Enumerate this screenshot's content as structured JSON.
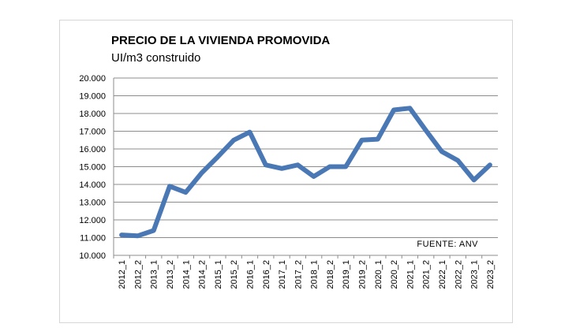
{
  "chart_data": {
    "type": "line",
    "title": "PRECIO DE LA VIVIENDA PROMOVIDA",
    "subtitle": "UI/m3 construido",
    "source": "FUENTE: ANV",
    "ylim": [
      10000,
      20000
    ],
    "yticks": [
      "10.000",
      "11.000",
      "12.000",
      "13.000",
      "14.000",
      "15.000",
      "16.000",
      "17.000",
      "18.000",
      "19.000",
      "20.000"
    ],
    "ytick_values": [
      10000,
      11000,
      12000,
      13000,
      14000,
      15000,
      16000,
      17000,
      18000,
      19000,
      20000
    ],
    "grid": true,
    "categories": [
      "2012_1",
      "2012_2",
      "2013_1",
      "2013_2",
      "2014_1",
      "2014_2",
      "2015_1",
      "2015_2",
      "2016_1",
      "2016_2",
      "2017_1",
      "2017_2",
      "2018_1",
      "2018_2",
      "2019_1",
      "2019_2",
      "2020_1",
      "2020_2",
      "2021_1",
      "2021_2",
      "2022_1",
      "2022_2",
      "2023_1",
      "2023_2"
    ],
    "series": [
      {
        "name": "Precio",
        "color": "#4a78b5",
        "values": [
          11150,
          11100,
          11400,
          13900,
          13550,
          14650,
          15550,
          16500,
          16950,
          15100,
          14900,
          15100,
          14450,
          15000,
          15000,
          16500,
          16550,
          18200,
          18300,
          17050,
          15850,
          15350,
          14250,
          15100
        ]
      }
    ]
  }
}
